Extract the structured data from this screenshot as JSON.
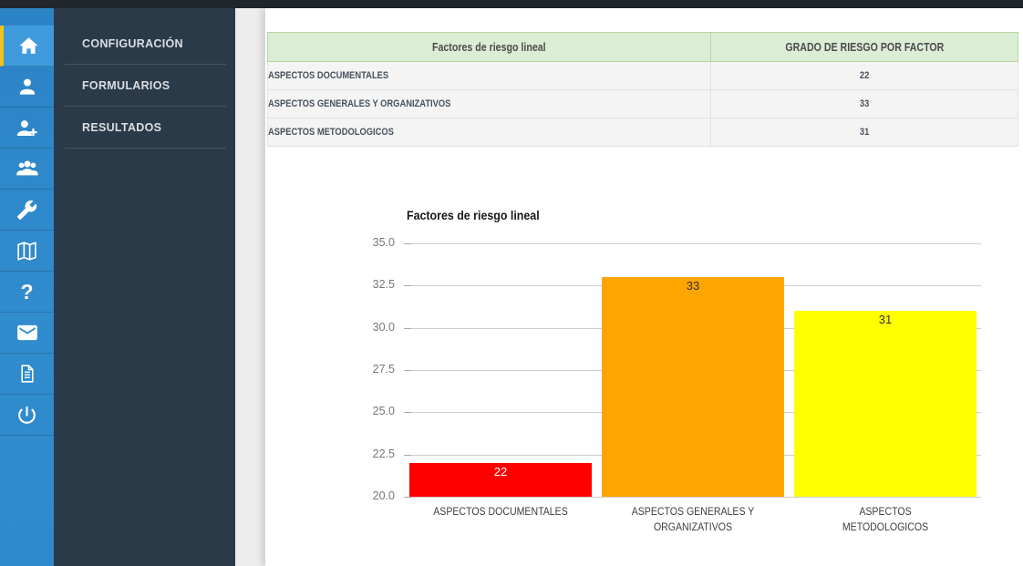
{
  "nav": {
    "items": [
      {
        "label": "CONFIGURACIÓN"
      },
      {
        "label": "FORMULARIOS"
      },
      {
        "label": "RESULTADOS"
      }
    ]
  },
  "iconbar": {
    "icons": [
      "home",
      "user",
      "user-add",
      "users-group",
      "wrench",
      "map",
      "help",
      "mail",
      "document",
      "power"
    ],
    "active": "home",
    "help_glyph": "?"
  },
  "table": {
    "columns": [
      "Factores de riesgo lineal",
      "GRADO DE RIESGO POR FACTOR"
    ],
    "rows": [
      {
        "factor": "ASPECTOS DOCUMENTALES",
        "value": "22"
      },
      {
        "factor": "ASPECTOS GENERALES Y ORGANIZATIVOS",
        "value": "33"
      },
      {
        "factor": "ASPECTOS METODOLOGICOS",
        "value": "31"
      }
    ]
  },
  "chart_data": {
    "type": "bar",
    "title": "Factores de riesgo lineal",
    "categories": [
      "ASPECTOS DOCUMENTALES",
      "ASPECTOS GENERALES Y\nORGANIZATIVOS",
      "ASPECTOS\nMETODOLOGICOS"
    ],
    "values": [
      22,
      33,
      31
    ],
    "bar_colors": [
      "#ff0000",
      "#ffa500",
      "#ffff00"
    ],
    "value_label_colors": [
      "#ffffff",
      "#333333",
      "#333333"
    ],
    "xlabel": "",
    "ylabel": "",
    "ylim": [
      20,
      35
    ],
    "y_ticks": [
      "35.0",
      "32.5",
      "30.0",
      "27.5",
      "25.0",
      "22.5",
      "20.0"
    ],
    "grid": true,
    "legend": "none"
  },
  "colors": {
    "topbar": "#21262c",
    "sidebar_blue": "#318cce",
    "sidebar_active_blue": "#3f9bdc",
    "active_accent_yellow": "#f2c318",
    "nav_dark": "#2b3a49",
    "table_header_green": "#dcedd5",
    "table_header_border": "#b4d79b",
    "row_gray": "#f4f4f4"
  }
}
